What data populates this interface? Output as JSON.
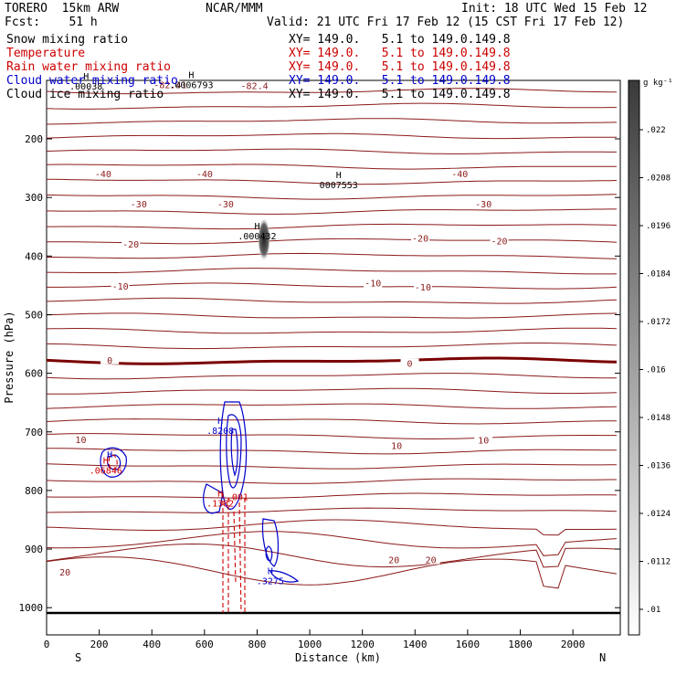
{
  "header": {
    "model": "TORERO  15km ARW",
    "org": "NCAR/MMM",
    "init": "Init: 18 UTC Wed 15 Feb 12",
    "fcst": "Fcst:    51 h",
    "valid": "Valid: 21 UTC Fri 17 Feb 12 (15 CST Fri 17 Feb 12)"
  },
  "legend": [
    {
      "name": "Snow mixing ratio",
      "xy": "XY= 149.0.   5.1 to 149.0.149.8",
      "color": "#000000"
    },
    {
      "name": "Temperature",
      "xy": "XY= 149.0.   5.1 to 149.0.149.8",
      "color": "#cc0000"
    },
    {
      "name": "Rain water mixing ratio",
      "xy": "XY= 149.0.   5.1 to 149.0.149.8",
      "color": "#cc0000"
    },
    {
      "name": "Cloud water mixing ratio",
      "xy": "XY= 149.0.   5.1 to 149.0.149.8",
      "color": "#0000cc"
    },
    {
      "name": "Cloud ice mixing ratio",
      "xy": "XY= 149.0.   5.1 to 149.0.149.8",
      "color": "#000000"
    }
  ],
  "chart_data": {
    "type": "contour",
    "xlabel": "Distance (km)",
    "ylabel": "Pressure (hPa)",
    "xlim": [
      0,
      2180
    ],
    "ylim": [
      1020,
      100
    ],
    "x_ticks": [
      0,
      200,
      400,
      600,
      800,
      1000,
      1200,
      1400,
      1600,
      1800,
      2000
    ],
    "y_ticks": [
      200,
      300,
      400,
      500,
      600,
      700,
      800,
      900,
      1000
    ],
    "x_ends": {
      "left": "S",
      "right": "N"
    },
    "colorbar": {
      "unit": "g kg⁻¹",
      "labels": [
        ".022",
        ".0208",
        ".0196",
        ".0184",
        ".0172",
        ".016",
        ".0148",
        ".0136",
        ".0124",
        ".0112",
        ".01"
      ]
    },
    "temperature_labels": [
      {
        "text": "-82.4",
        "x": 790,
        "p": 112
      },
      {
        "text": "-82.41",
        "x": 470,
        "p": 110
      },
      {
        "text": "-40",
        "x": 215,
        "p": 262
      },
      {
        "text": "-40",
        "x": 600,
        "p": 262
      },
      {
        "text": "-40",
        "x": 1570,
        "p": 262
      },
      {
        "text": "-30",
        "x": 350,
        "p": 314
      },
      {
        "text": "-30",
        "x": 680,
        "p": 314
      },
      {
        "text": "-30",
        "x": 1660,
        "p": 314
      },
      {
        "text": "-20",
        "x": 320,
        "p": 382
      },
      {
        "text": "-20",
        "x": 1420,
        "p": 372
      },
      {
        "text": "-20",
        "x": 1720,
        "p": 377
      },
      {
        "text": "-10",
        "x": 280,
        "p": 454
      },
      {
        "text": "-10",
        "x": 1240,
        "p": 449
      },
      {
        "text": "-10",
        "x": 1430,
        "p": 456
      },
      {
        "text": "0",
        "x": 240,
        "p": 580
      },
      {
        "text": "0",
        "x": 1380,
        "p": 586
      },
      {
        "text": "10",
        "x": 130,
        "p": 716
      },
      {
        "text": "10",
        "x": 1330,
        "p": 726
      },
      {
        "text": "10",
        "x": 1660,
        "p": 717
      },
      {
        "text": "20",
        "x": 1320,
        "p": 921
      },
      {
        "text": "20",
        "x": 1460,
        "p": 921
      },
      {
        "text": "20",
        "x": 70,
        "p": 942
      }
    ],
    "extrema_labels": [
      {
        "mark": "H",
        "value": "0007553",
        "x": 1110,
        "p": 283,
        "color": "#000000"
      },
      {
        "mark": "H",
        "value": ".000432",
        "x": 800,
        "p": 370,
        "color": "#000000"
      },
      {
        "mark": "H",
        "value": ".0006793",
        "x": 550,
        "p": 112,
        "color": "#000000"
      },
      {
        "mark": "H",
        "value": ".00038",
        "x": 150,
        "p": 114,
        "color": "#000000"
      },
      {
        "mark": "H",
        "value": ".8208",
        "x": 660,
        "p": 702,
        "color": "#0000cc"
      },
      {
        "mark": "H",
        "value": ".3275",
        "x": 850,
        "p": 958,
        "color": "#0000cc"
      },
      {
        "mark": "H",
        "value": ".06846",
        "x": 225,
        "p": 770,
        "color": "#cc0000"
      },
      {
        "mark": "H",
        "value": ".1382",
        "x": 660,
        "p": 826,
        "color": "#cc0000"
      },
      {
        "mark": "",
        "value": ".001",
        "x": 725,
        "p": 815,
        "color": "#cc0000"
      },
      {
        "mark": "H",
        "value": "",
        "x": 240,
        "p": 760,
        "color": "#0000cc"
      }
    ]
  }
}
